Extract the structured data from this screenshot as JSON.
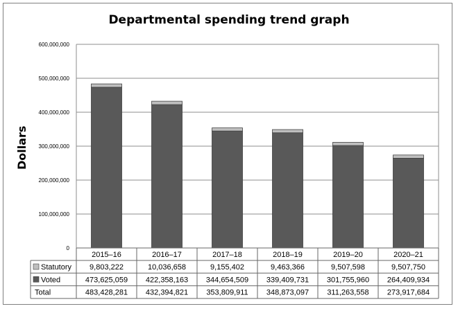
{
  "chart_data": {
    "type": "bar",
    "stacked": true,
    "title": "Departmental spending trend graph",
    "xlabel": "",
    "ylabel": "Dollars",
    "ylim": [
      0,
      600000000
    ],
    "yticks": [
      0,
      100000000,
      200000000,
      300000000,
      400000000,
      500000000,
      600000000
    ],
    "ytick_labels": [
      "0",
      "100,000,000",
      "200,000,000",
      "300,000,000",
      "400,000,000",
      "500,000,000",
      "600,000,000"
    ],
    "grid": true,
    "categories": [
      "2015–16",
      "2016–17",
      "2017–18",
      "2018–19",
      "2019–20",
      "2020–21"
    ],
    "series": [
      {
        "name": "Voted",
        "color": "#595959",
        "values": [
          473625059,
          422358163,
          344654509,
          339409731,
          301755960,
          264409934
        ],
        "labels": [
          "473,625,059",
          "422,358,163",
          "344,654,509",
          "339,409,731",
          "301,755,960",
          "264,409,934"
        ]
      },
      {
        "name": "Statutory",
        "color": "#bfbfbf",
        "values": [
          9803222,
          10036658,
          9155402,
          9463366,
          9507598,
          9507750
        ],
        "labels": [
          "9,803,222",
          "10,036,658",
          "9,155,402",
          "9,463,366",
          "9,507,598",
          "9,507,750"
        ]
      }
    ],
    "table": {
      "rows": [
        {
          "name": "Statutory",
          "series_index": 1
        },
        {
          "name": "Voted",
          "series_index": 0
        },
        {
          "name": "Total",
          "values": [
            "483,428,281",
            "432,394,821",
            "353,809,911",
            "348,873,097",
            "311,263,558",
            "273,917,684"
          ]
        }
      ]
    }
  }
}
